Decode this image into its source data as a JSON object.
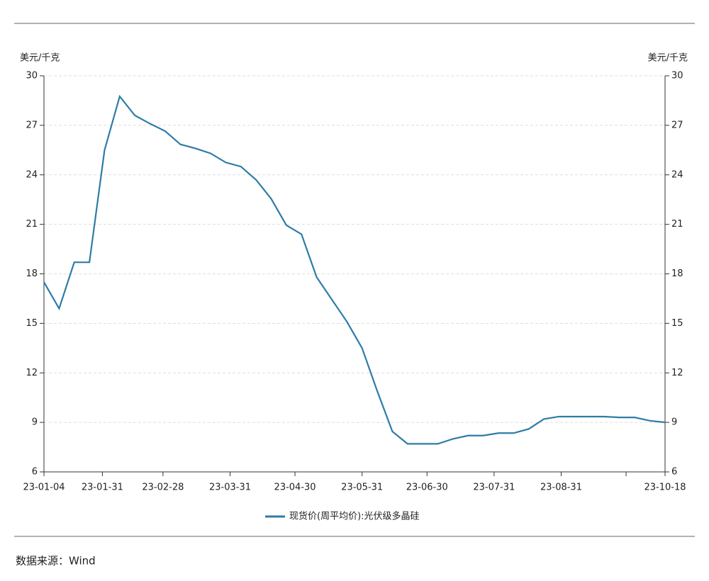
{
  "chart_data": {
    "type": "line",
    "ylabel": "美元/千克",
    "y2label": "美元/千克",
    "x": [
      "23-01-04",
      "23-01-11",
      "23-01-18",
      "23-01-25",
      "23-02-01",
      "23-02-08",
      "23-02-15",
      "23-02-22",
      "23-03-01",
      "23-03-08",
      "23-03-15",
      "23-03-22",
      "23-03-29",
      "23-04-05",
      "23-04-12",
      "23-04-19",
      "23-04-26",
      "23-05-03",
      "23-05-10",
      "23-05-17",
      "23-05-24",
      "23-05-31",
      "23-06-07",
      "23-06-14",
      "23-06-21",
      "23-06-28",
      "23-07-05",
      "23-07-12",
      "23-07-19",
      "23-07-26",
      "23-08-02",
      "23-08-09",
      "23-08-16",
      "23-08-23",
      "23-08-30",
      "23-09-06",
      "23-09-13",
      "23-09-20",
      "23-09-27",
      "23-10-04",
      "23-10-11",
      "23-10-18"
    ],
    "series": [
      {
        "name": "现货价(周平均价):光伏级多晶硅",
        "color": "#2e7ca6",
        "values": [
          17.5,
          15.9,
          18.7,
          18.7,
          25.5,
          28.75,
          27.6,
          27.1,
          26.65,
          25.85,
          25.6,
          25.3,
          24.75,
          24.5,
          23.7,
          22.55,
          20.95,
          20.4,
          17.8,
          16.45,
          15.1,
          13.5,
          10.9,
          8.45,
          7.7,
          7.7,
          7.7,
          8.0,
          8.2,
          8.2,
          8.35,
          8.35,
          8.6,
          9.2,
          9.35,
          9.35,
          9.35,
          9.35,
          9.3,
          9.3,
          9.1,
          9.0
        ]
      }
    ],
    "xlim": [
      "23-01-04",
      "23-10-18"
    ],
    "xticks": [
      "23-01-04",
      "23-01-31",
      "23-02-28",
      "23-03-31",
      "23-04-30",
      "23-05-31",
      "23-06-30",
      "23-07-31",
      "23-08-31",
      {
        "value": "23-09-30",
        "label": null
      },
      "23-10-18"
    ],
    "ylim": [
      6,
      30
    ],
    "yticks": [
      6,
      9,
      12,
      15,
      18,
      21,
      24,
      27,
      30
    ],
    "y2lim": [
      6,
      30
    ],
    "y2ticks": [
      6,
      9,
      12,
      15,
      18,
      21,
      24,
      27,
      30
    ],
    "grid": true
  },
  "footer": {
    "source": "数据来源：Wind"
  }
}
